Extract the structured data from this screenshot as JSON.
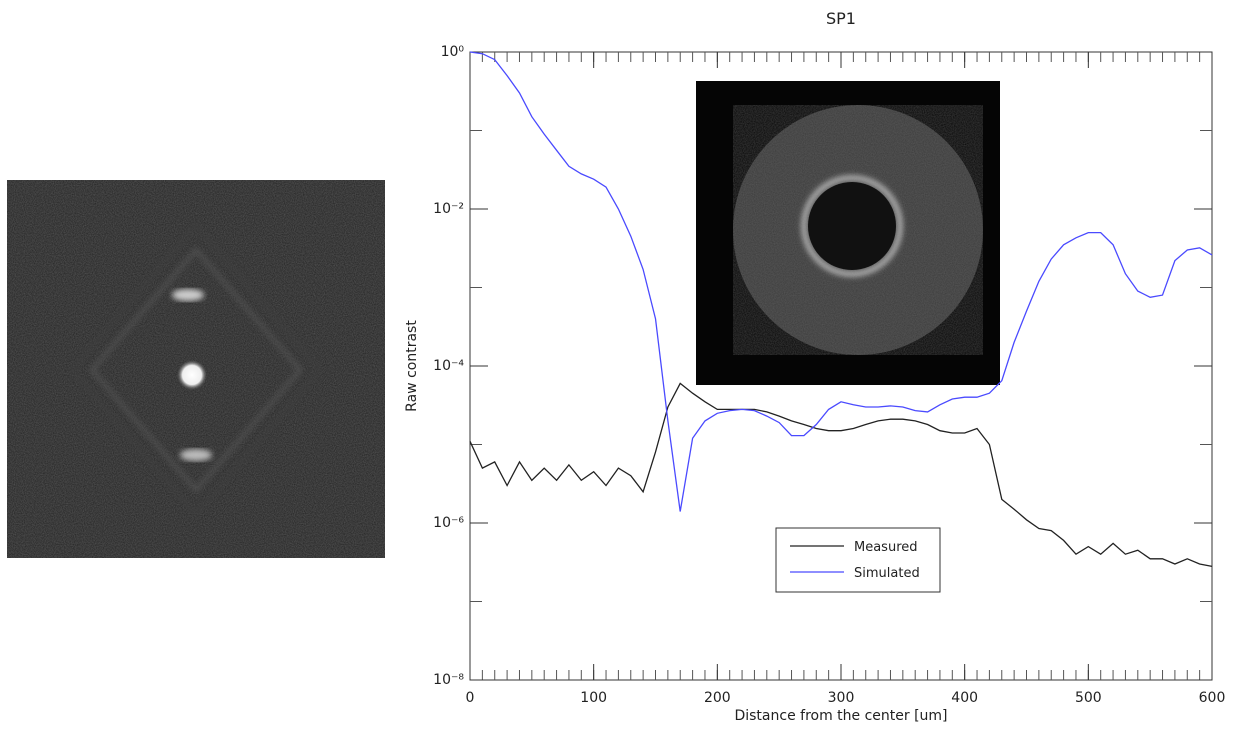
{
  "chart_data": {
    "type": "line",
    "title": "SP1",
    "x_label": "Distance from the center [um]",
    "y_label": "Raw contrast",
    "yscale": "log",
    "legend": "lower center",
    "xlim": [
      0,
      600
    ],
    "xticks": [
      0,
      100,
      200,
      300,
      400,
      500,
      600
    ],
    "ylim": [
      1e-08,
      1
    ],
    "yticks": [
      {
        "value": 1,
        "label": "10⁰"
      },
      {
        "value": 0.01,
        "label": "10⁻²"
      },
      {
        "value": 0.0001,
        "label": "10⁻⁴"
      },
      {
        "value": 1e-06,
        "label": "10⁻⁶"
      },
      {
        "value": 1e-08,
        "label": "10⁻⁸"
      }
    ],
    "x": [
      0,
      10,
      20,
      30,
      40,
      50,
      60,
      70,
      80,
      90,
      100,
      110,
      120,
      130,
      140,
      150,
      160,
      170,
      180,
      190,
      200,
      210,
      220,
      230,
      240,
      250,
      260,
      270,
      280,
      290,
      300,
      310,
      320,
      330,
      340,
      350,
      360,
      370,
      380,
      390,
      400,
      410,
      420,
      430,
      440,
      450,
      460,
      470,
      480,
      490,
      500,
      510,
      520,
      530,
      540,
      550,
      560,
      570,
      580,
      590,
      600
    ],
    "series": [
      {
        "name": "Measured",
        "color": "#222222",
        "values": [
          1.1e-05,
          5e-06,
          6e-06,
          3e-06,
          6e-06,
          3.5e-06,
          5e-06,
          3.5e-06,
          5.5e-06,
          3.5e-06,
          4.5e-06,
          3e-06,
          5e-06,
          4e-06,
          2.5e-06,
          8e-06,
          3e-05,
          6e-05,
          4.5e-05,
          3.5e-05,
          2.8e-05,
          2.8e-05,
          2.8e-05,
          2.8e-05,
          2.6e-05,
          2.3e-05,
          2e-05,
          1.8e-05,
          1.6e-05,
          1.5e-05,
          1.5e-05,
          1.6e-05,
          1.8e-05,
          2e-05,
          2.1e-05,
          2.1e-05,
          2e-05,
          1.8e-05,
          1.5e-05,
          1.4e-05,
          1.4e-05,
          1.6e-05,
          1e-05,
          2e-06,
          1.5e-06,
          1.1e-06,
          8.5e-07,
          8e-07,
          6e-07,
          4e-07,
          5e-07,
          4e-07,
          5.5e-07,
          4e-07,
          4.5e-07,
          3.5e-07,
          3.5e-07,
          3e-07,
          3.5e-07,
          3e-07,
          2.8e-07
        ]
      },
      {
        "name": "Simulated",
        "color": "#4a4aff",
        "values": [
          1,
          0.95,
          0.8,
          0.5,
          0.3,
          0.15,
          0.09,
          0.056,
          0.035,
          0.028,
          0.024,
          0.019,
          0.01,
          0.0045,
          0.0017,
          0.0004,
          2e-05,
          1.4e-06,
          1.2e-05,
          2e-05,
          2.5e-05,
          2.7e-05,
          2.8e-05,
          2.7e-05,
          2.3e-05,
          1.9e-05,
          1.3e-05,
          1.3e-05,
          1.8e-05,
          2.8e-05,
          3.5e-05,
          3.2e-05,
          3e-05,
          3e-05,
          3.1e-05,
          3e-05,
          2.7e-05,
          2.6e-05,
          3.2e-05,
          3.8e-05,
          4e-05,
          4e-05,
          4.5e-05,
          6.5e-05,
          0.0002,
          0.0005,
          0.0012,
          0.0023,
          0.0035,
          0.0043,
          0.005,
          0.005,
          0.0035,
          0.0015,
          0.0009,
          0.00075,
          0.0008,
          0.0022,
          0.003,
          0.0032,
          0.0026
        ]
      }
    ]
  }
}
